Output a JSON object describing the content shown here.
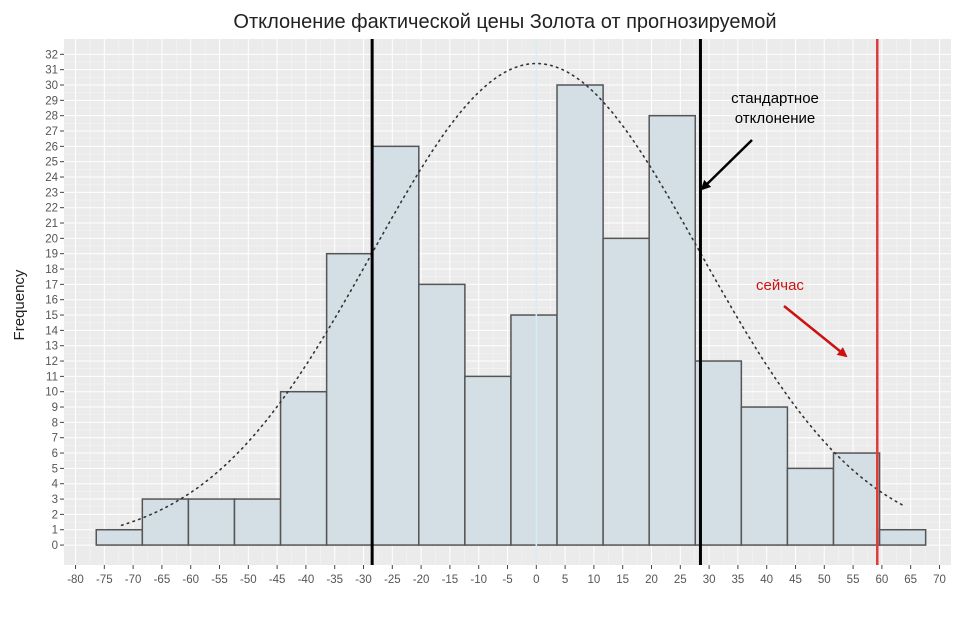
{
  "chart_data": {
    "type": "bar",
    "title": "Отклонение фактической цены Золота от прогнозируемой",
    "xlabel": "",
    "ylabel": "Frequency",
    "xlim": [
      -82,
      72
    ],
    "ylim": [
      -1.3,
      33
    ],
    "grid": true,
    "x_ticks": [
      -80,
      -75,
      -70,
      -65,
      -60,
      -55,
      -50,
      -45,
      -40,
      -35,
      -30,
      -25,
      -20,
      -15,
      -10,
      -5,
      0,
      5,
      10,
      15,
      20,
      25,
      30,
      35,
      40,
      45,
      50,
      55,
      60,
      65,
      70
    ],
    "y_ticks": [
      0,
      1,
      2,
      3,
      4,
      5,
      6,
      7,
      8,
      9,
      10,
      11,
      12,
      13,
      14,
      15,
      16,
      17,
      18,
      19,
      20,
      21,
      22,
      23,
      24,
      25,
      26,
      27,
      28,
      29,
      30,
      31,
      32
    ],
    "bin_edges": [
      -76.4,
      -68.4,
      -60.4,
      -52.4,
      -44.4,
      -36.4,
      -28.4,
      -20.4,
      -12.4,
      -4.4,
      3.6,
      11.6,
      19.6,
      27.6,
      35.6,
      43.6,
      51.6,
      59.6,
      67.6
    ],
    "values": [
      1,
      3,
      3,
      3,
      10,
      19,
      26,
      17,
      11,
      15,
      30,
      20,
      28,
      12,
      9,
      5,
      6,
      1
    ],
    "normal_curve": {
      "mean": 0,
      "sd": 28.5,
      "peak": 31.4,
      "x_range": [
        -72,
        64
      ]
    },
    "vlines": [
      {
        "x": -28.5,
        "color": "#000000",
        "role": "sd-left"
      },
      {
        "x": 28.5,
        "color": "#000000",
        "role": "sd-right"
      },
      {
        "x": 0,
        "color": "#d8ecf5",
        "role": "mean"
      },
      {
        "x": 59.2,
        "color": "#e03a3a",
        "role": "current"
      }
    ],
    "annotations": [
      {
        "lines": [
          "стандартное",
          "отклонение"
        ],
        "color": "#000000"
      },
      {
        "lines": [
          "сейчас"
        ],
        "color": "#cc1111"
      }
    ],
    "colors": {
      "bar_fill": "#d3dfe5",
      "bar_stroke": "#555555",
      "panel_bg": "#ebebeb",
      "grid": "#ffffff",
      "curve": "#333333"
    }
  }
}
